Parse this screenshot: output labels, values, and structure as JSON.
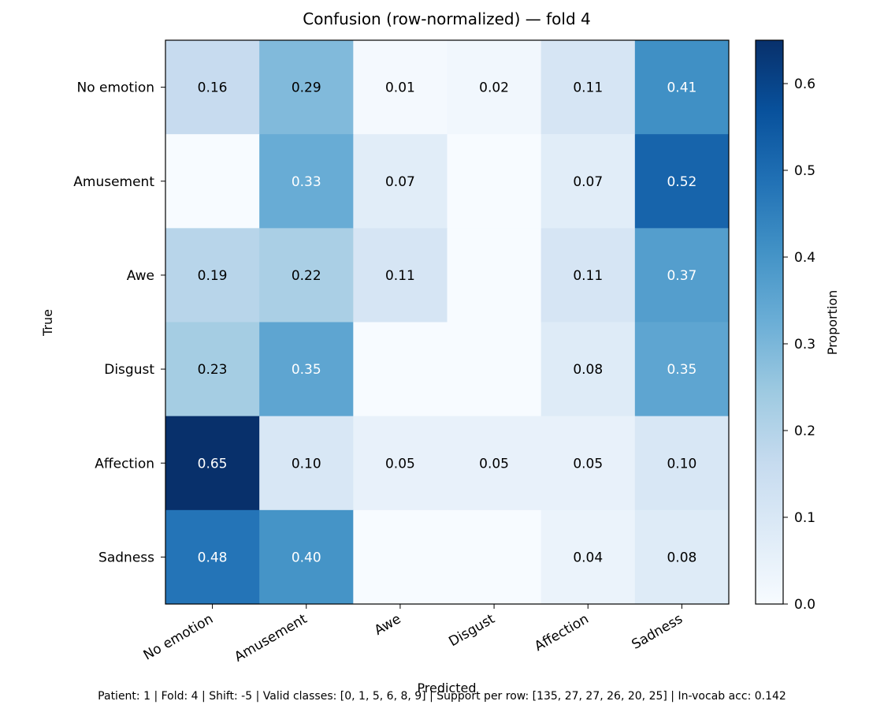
{
  "chart_data": {
    "type": "heatmap",
    "title": "Confusion (row-normalized) — fold 4",
    "xlabel": "Predicted",
    "ylabel": "True",
    "x_categories": [
      "No emotion",
      "Amusement",
      "Awe",
      "Disgust",
      "Affection",
      "Sadness"
    ],
    "y_categories": [
      "No emotion",
      "Amusement",
      "Awe",
      "Disgust",
      "Affection",
      "Sadness"
    ],
    "values": [
      [
        0.16,
        0.29,
        0.01,
        0.02,
        0.11,
        0.41
      ],
      [
        0.0,
        0.33,
        0.07,
        0.0,
        0.07,
        0.52
      ],
      [
        0.19,
        0.22,
        0.11,
        0.0,
        0.11,
        0.37
      ],
      [
        0.23,
        0.35,
        0.0,
        0.0,
        0.08,
        0.35
      ],
      [
        0.65,
        0.1,
        0.05,
        0.05,
        0.05,
        0.1
      ],
      [
        0.48,
        0.4,
        0.0,
        0.0,
        0.04,
        0.08
      ]
    ],
    "cell_labels": [
      [
        "0.16",
        "0.29",
        "0.01",
        "0.02",
        "0.11",
        "0.41"
      ],
      [
        "",
        "0.33",
        "0.07",
        "",
        "0.07",
        "0.52"
      ],
      [
        "0.19",
        "0.22",
        "0.11",
        "",
        "0.11",
        "0.37"
      ],
      [
        "0.23",
        "0.35",
        "",
        "",
        "0.08",
        "0.35"
      ],
      [
        "0.65",
        "0.10",
        "0.05",
        "0.05",
        "0.05",
        "0.10"
      ],
      [
        "0.48",
        "0.40",
        "",
        "",
        "0.04",
        "0.08"
      ]
    ],
    "colorbar": {
      "label": "Proportion",
      "colormap": "Blues",
      "range": [
        0,
        0.65
      ],
      "ticks": [
        0.0,
        0.1,
        0.2,
        0.3,
        0.4,
        0.5,
        0.6
      ],
      "tick_labels": [
        "0.0",
        "0.1",
        "0.2",
        "0.3",
        "0.4",
        "0.5",
        "0.6"
      ]
    },
    "grid": false
  },
  "footer": "Patient: 1 | Fold: 4 | Shift: -5 | Valid classes: [0, 1, 5, 6, 8, 9] | Support per row: [135, 27, 27, 26, 20, 25] | In-vocab acc: 0.142"
}
